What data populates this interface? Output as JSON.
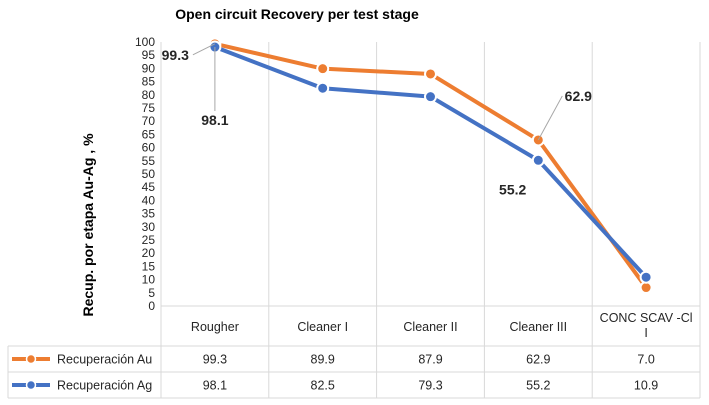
{
  "chart_data": {
    "type": "line",
    "title": "Open circuit Recovery per test stage",
    "xlabel": "",
    "ylabel": "Recup.  por etapa Au-Ag , %",
    "ylim": [
      0,
      100
    ],
    "yticks": [
      0,
      5,
      10,
      15,
      20,
      25,
      30,
      35,
      40,
      45,
      50,
      55,
      60,
      65,
      70,
      75,
      80,
      85,
      90,
      95,
      100
    ],
    "categories": [
      "Rougher",
      "Cleaner I",
      "Cleaner II",
      "Cleaner III",
      "CONC SCAV -Cl I"
    ],
    "grid": "vertical",
    "legend": "data-table-left",
    "series": [
      {
        "name": "Recuperación  Au",
        "color": "#ED7D31",
        "values": [
          99.3,
          89.9,
          87.9,
          62.9,
          7.0
        ],
        "table_values": [
          "99.3",
          "89.9",
          "87.9",
          "62.9",
          "7.0"
        ]
      },
      {
        "name": "Recuperación  Ag",
        "color": "#4472C4",
        "values": [
          98.1,
          82.5,
          79.3,
          55.2,
          10.9
        ],
        "table_values": [
          "98.1",
          "82.5",
          "79.3",
          "55.2",
          "10.9"
        ]
      }
    ],
    "data_labels": [
      {
        "series": 0,
        "point": 0,
        "text": "99.3"
      },
      {
        "series": 1,
        "point": 0,
        "text": "98.1"
      },
      {
        "series": 0,
        "point": 3,
        "text": "62.9"
      },
      {
        "series": 1,
        "point": 3,
        "text": "55.2"
      }
    ]
  }
}
